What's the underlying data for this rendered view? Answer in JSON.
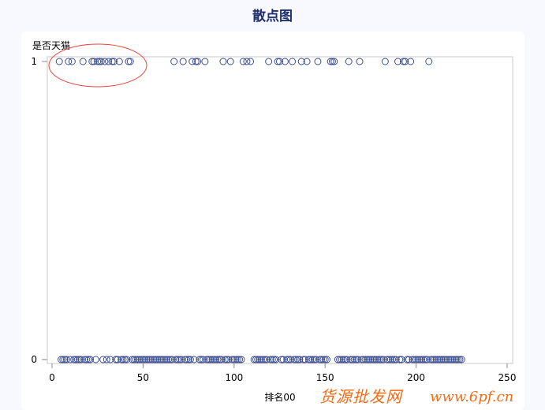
{
  "chart_data": {
    "type": "scatter",
    "title": "散点图",
    "xlabel": "排名00",
    "ylabel": "是否天猫",
    "xlim": [
      0,
      250
    ],
    "ylim": [
      0,
      1
    ],
    "xticks": [
      0,
      50,
      100,
      150,
      200,
      250
    ],
    "yticks": [
      0,
      1
    ],
    "grid": false,
    "marker": "open-circle",
    "marker_color": "#3d4f8f",
    "points_y1": [
      4,
      9,
      11,
      17,
      22,
      23,
      25,
      26,
      27,
      29,
      31,
      33,
      34,
      37,
      42,
      43,
      67,
      72,
      77,
      79,
      80,
      84,
      94,
      98,
      105,
      107,
      109,
      119,
      124,
      125,
      128,
      132,
      137,
      140,
      146,
      153,
      154,
      155,
      163,
      169,
      183,
      190,
      193,
      194,
      197,
      207
    ],
    "points_y0": [
      5,
      6,
      7,
      8,
      10,
      12,
      13,
      14,
      15,
      16,
      18,
      19,
      20,
      21,
      24,
      28,
      30,
      32,
      35,
      36,
      38,
      39,
      40,
      41,
      44,
      45,
      46,
      47,
      48,
      49,
      50,
      51,
      52,
      53,
      54,
      55,
      56,
      57,
      58,
      59,
      60,
      61,
      62,
      63,
      64,
      65,
      66,
      68,
      69,
      70,
      71,
      73,
      74,
      75,
      76,
      78,
      81,
      82,
      83,
      85,
      86,
      87,
      88,
      89,
      90,
      91,
      92,
      93,
      95,
      96,
      97,
      99,
      100,
      101,
      102,
      103,
      104,
      111,
      112,
      113,
      114,
      115,
      116,
      117,
      118,
      120,
      121,
      122,
      123,
      126,
      127,
      129,
      130,
      131,
      133,
      134,
      135,
      136,
      138,
      139,
      141,
      142,
      143,
      144,
      145,
      147,
      148,
      149,
      150,
      151,
      157,
      158,
      159,
      160,
      161,
      162,
      164,
      165,
      166,
      167,
      168,
      170,
      171,
      172,
      173,
      174,
      175,
      176,
      177,
      178,
      179,
      180,
      181,
      182,
      184,
      185,
      186,
      187,
      188,
      189,
      191,
      192,
      195,
      196,
      198,
      199,
      200,
      201,
      202,
      203,
      204,
      205,
      206,
      208,
      209,
      210,
      211,
      212,
      213,
      214,
      215,
      216,
      217,
      218,
      219,
      220,
      221,
      222,
      223,
      224,
      225
    ],
    "annotation": "red ellipse around y=1 points with rank below ~45"
  },
  "watermark": {
    "line1": "货源批发网",
    "line2": "www.6pf.cn"
  }
}
